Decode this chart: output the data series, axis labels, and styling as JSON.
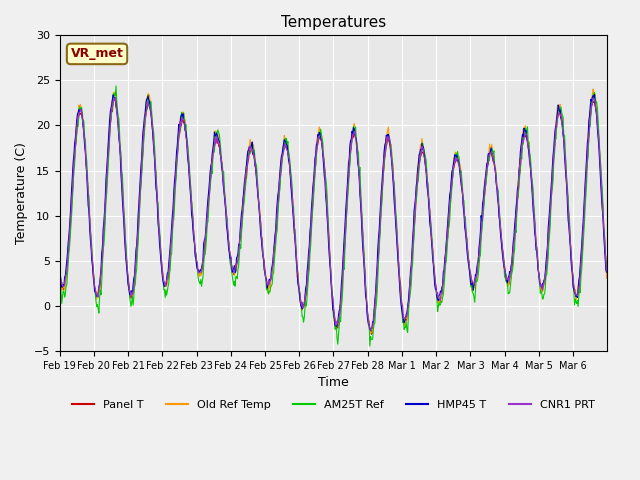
{
  "title": "Temperatures",
  "xlabel": "Time",
  "ylabel": "Temperature (C)",
  "ylim": [
    -5,
    30
  ],
  "annotation_text": "VR_met",
  "x_tick_labels": [
    "Feb 19",
    "Feb 20",
    "Feb 21",
    "Feb 22",
    "Feb 23",
    "Feb 24",
    "Feb 25",
    "Feb 26",
    "Feb 27",
    "Feb 28",
    "Mar 1",
    "Mar 2",
    "Mar 3",
    "Mar 4",
    "Mar 5",
    "Mar 6"
  ],
  "series_names": [
    "Panel T",
    "Old Ref Temp",
    "AM25T Ref",
    "HMP45 T",
    "CNR1 PRT"
  ],
  "series_colors": [
    "#cc0000",
    "#ff9900",
    "#00cc00",
    "#0000cc",
    "#9933cc"
  ],
  "background_color": "#e8e8e8",
  "grid_color": "#ffffff",
  "n_days": 16,
  "pts_per_day": 48
}
